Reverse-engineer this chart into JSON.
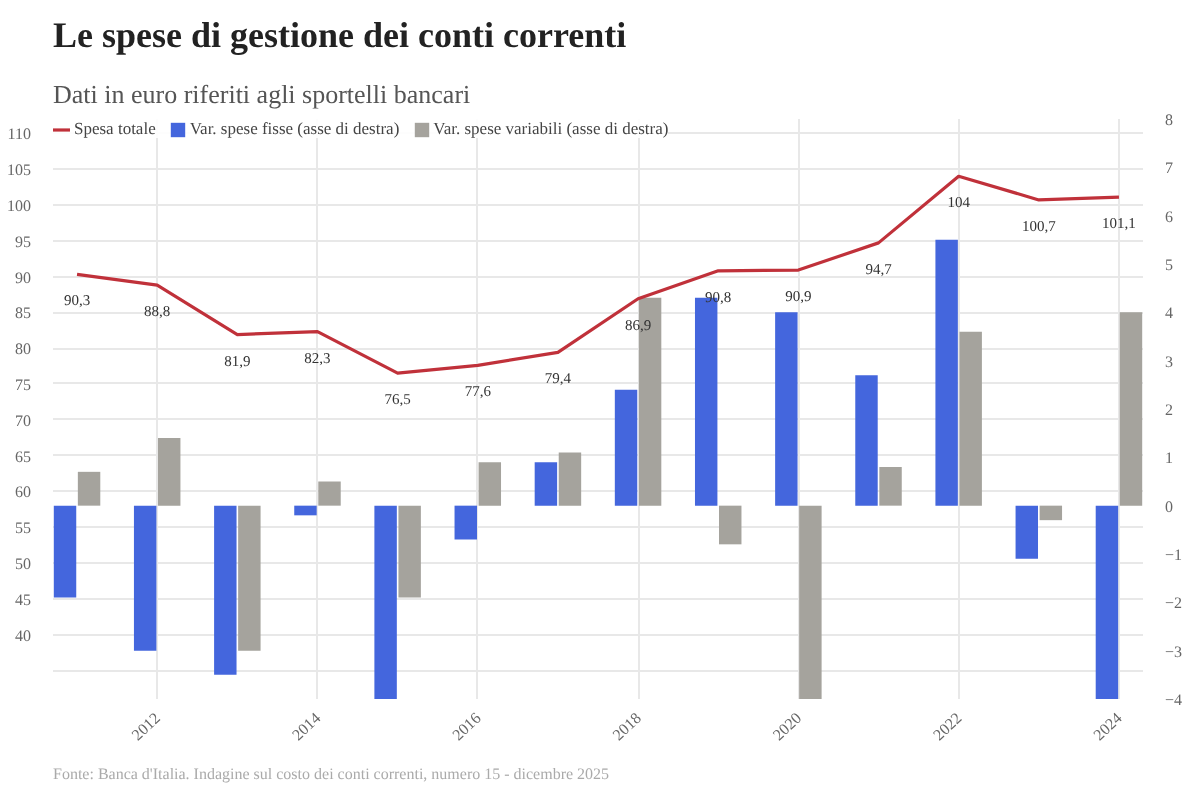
{
  "chart_data": {
    "type": "bar",
    "title": "Le spese di gestione dei conti correnti",
    "subtitle": "Dati in euro riferiti agli sportelli bancari",
    "annotations": [
      "Fonte: Banca d'Italia. Indagine sul costo dei conti correnti, numero 15 - dicembre 2025"
    ],
    "x": [
      2011,
      2012,
      2013,
      2014,
      2015,
      2016,
      2017,
      2018,
      2019,
      2020,
      2021,
      2022,
      2023,
      2024
    ],
    "series": [
      {
        "name": "Spesa totale",
        "type": "line",
        "color": "#c0313a",
        "values": [
          90.3,
          88.8,
          81.9,
          82.3,
          76.5,
          77.6,
          79.4,
          86.9,
          90.8,
          90.9,
          94.7,
          104,
          100.7,
          101.1
        ],
        "value_labels": [
          "90,3",
          "88,8",
          "81,9",
          "82,3",
          "76,5",
          "77,6",
          "79,4",
          "86,9",
          "90,8",
          "90,9",
          "94,7",
          "104",
          "100,7",
          "101,1"
        ]
      },
      {
        "name": "Var. spese fisse (asse di destra)",
        "axis": "y2",
        "color": "#4466dd",
        "values": [
          -1.9,
          -3.0,
          -3.5,
          -0.2,
          -4,
          -0.7,
          0.9,
          2.4,
          4.3,
          4.0,
          2.7,
          5.5,
          -1.1,
          -4
        ]
      },
      {
        "name": "Var. spese variabili (asse di destra)",
        "axis": "y2",
        "color": "#a5a39d",
        "values": [
          0.7,
          1.4,
          -3.0,
          0.5,
          -1.9,
          0.9,
          1.1,
          4.3,
          -0.8,
          -4,
          0.8,
          3.6,
          -0.3,
          4.0
        ]
      }
    ],
    "xlim": [
      2010.7,
      2024.3
    ],
    "xticks": [
      2012,
      2014,
      2016,
      2018,
      2020,
      2022,
      2024
    ],
    "ylim": [
      31,
      112
    ],
    "yticks": [
      {
        "value": 35,
        "label": null
      },
      40,
      45,
      50,
      55,
      60,
      65,
      70,
      75,
      80,
      85,
      90,
      95,
      100,
      105,
      110
    ],
    "y2lim": [
      -4,
      8
    ],
    "y2ticks": [
      -4,
      -3,
      -2,
      -1,
      0,
      1,
      2,
      3,
      4,
      5,
      6,
      7,
      8
    ],
    "grid": true,
    "legend": "top left",
    "line_style": "solid"
  }
}
